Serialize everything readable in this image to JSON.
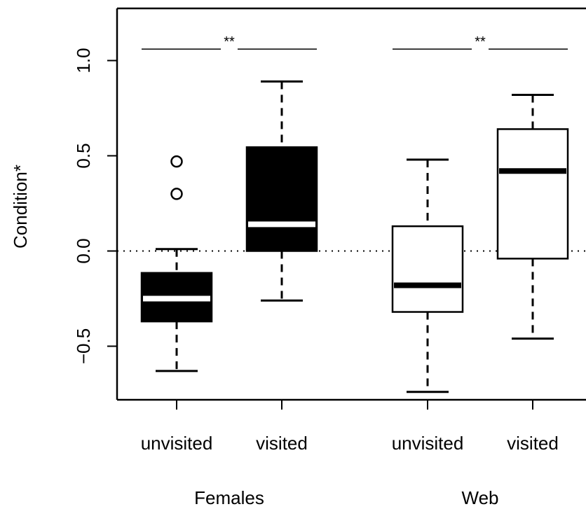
{
  "chart_data": {
    "type": "box",
    "ylabel": "Condition*",
    "ylim": [
      -0.78,
      1.26
    ],
    "yticks": [
      -0.5,
      0.0,
      0.5,
      1.0
    ],
    "ytick_labels": [
      "−0.5",
      "0.0",
      "0.5",
      "1.0"
    ],
    "reference_line": {
      "y": 0.0,
      "style": "dotted"
    },
    "grid": false,
    "groups": [
      {
        "label": "Females",
        "significance": "**",
        "boxes": [
          {
            "label": "unvisited",
            "min": -0.63,
            "q1": -0.37,
            "median": -0.25,
            "q3": -0.115,
            "max": 0.01,
            "outliers": [
              0.3,
              0.47
            ],
            "fill": "#000000",
            "median_color": "#ffffff"
          },
          {
            "label": "visited",
            "min": -0.26,
            "q1": 0.0,
            "median": 0.14,
            "q3": 0.545,
            "max": 0.89,
            "outliers": [],
            "fill": "#000000",
            "median_color": "#ffffff"
          }
        ]
      },
      {
        "label": "Web",
        "significance": "**",
        "boxes": [
          {
            "label": "unvisited",
            "min": -0.74,
            "q1": -0.32,
            "median": -0.18,
            "q3": 0.13,
            "max": 0.48,
            "outliers": [],
            "fill": "#ffffff",
            "median_color": "#000000"
          },
          {
            "label": "visited",
            "min": -0.46,
            "q1": -0.04,
            "median": 0.42,
            "q3": 0.64,
            "max": 0.82,
            "outliers": [],
            "fill": "#ffffff",
            "median_color": "#000000"
          }
        ]
      }
    ],
    "significance_y": 1.06
  }
}
